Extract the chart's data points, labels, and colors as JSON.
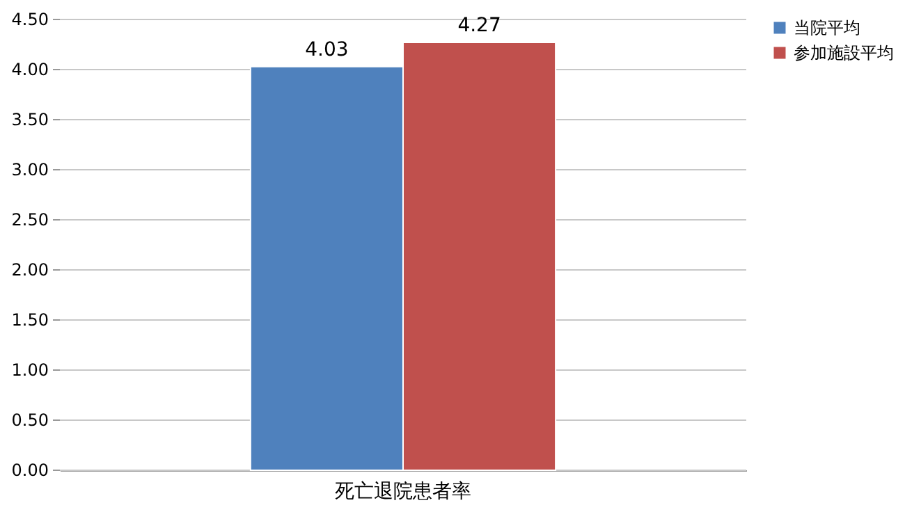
{
  "chart_data": {
    "type": "bar",
    "categories": [
      "死亡退院患者率"
    ],
    "series": [
      {
        "name": "当院平均",
        "color": "#4f81bd",
        "values": [
          4.03
        ]
      },
      {
        "name": "参加施設平均",
        "color": "#c0504d",
        "values": [
          4.27
        ]
      }
    ],
    "ylim": [
      0,
      4.5
    ],
    "yticks": [
      {
        "value": 0,
        "label": "0.00"
      },
      {
        "value": 0.5,
        "label": "0.50"
      },
      {
        "value": 1,
        "label": "1.00"
      },
      {
        "value": 1.5,
        "label": "1.50"
      },
      {
        "value": 2,
        "label": "2.00"
      },
      {
        "value": 2.5,
        "label": "2.50"
      },
      {
        "value": 3,
        "label": "3.00"
      },
      {
        "value": 3.5,
        "label": "3.50"
      },
      {
        "value": 4,
        "label": "4.00"
      },
      {
        "value": 4.5,
        "label": "4.50"
      }
    ],
    "grid": "y",
    "legend": "right",
    "data_labels": true
  }
}
